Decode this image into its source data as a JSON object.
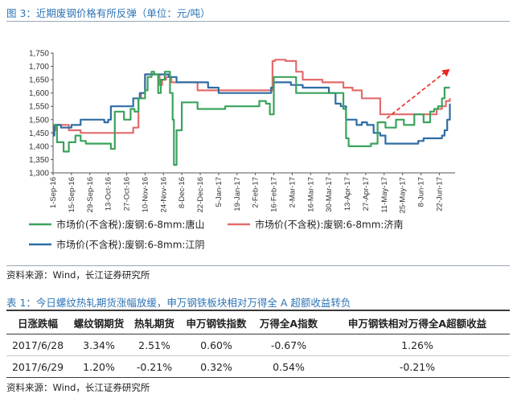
{
  "figure_title": "图 3：近期废钢价格有所反弹（单位：元/吨）",
  "source_note_1": "资料来源：Wind，长江证券研究所",
  "table_title": "表 1：今日螺纹热轧期货涨幅放缓，申万钢铁板块相对万得全 A 超额收益转负",
  "table": {
    "headers": [
      "日涨跌幅",
      "螺纹钢期货",
      "热轧期货",
      "申万钢铁指数",
      "万得全A指数",
      "申万钢铁相对万得全A超额收益"
    ],
    "rows": [
      [
        "2017/6/28",
        "3.34%",
        "2.51%",
        "0.60%",
        "-0.67%",
        "1.26%"
      ],
      [
        "2017/6/29",
        "1.20%",
        "-0.21%",
        "0.32%",
        "0.54%",
        "-0.21%"
      ]
    ]
  },
  "source_note_2": "资料来源：Wind，长江证券研究所",
  "chart_data": {
    "type": "line",
    "ylim": [
      1300,
      1750
    ],
    "yticks": [
      1300,
      1350,
      1400,
      1450,
      1500,
      1550,
      1600,
      1650,
      1700,
      1750
    ],
    "ytick_labels": [
      "1,300",
      "1,350",
      "1,400",
      "1,450",
      "1,500",
      "1,550",
      "1,600",
      "1,650",
      "1,700",
      "1,750"
    ],
    "x_start": "2016-09-01",
    "x_end": "2017-07-04",
    "xtick_labels": [
      "1-Sep-16",
      "15-Sep-16",
      "29-Sep-16",
      "13-Oct-16",
      "27-Oct-16",
      "10-Nov-16",
      "24-Nov-16",
      "8-Dec-16",
      "22-Dec-16",
      "5-Jan-17",
      "19-Jan-17",
      "2-Feb-17",
      "16-Feb-17",
      "2-Mar-17",
      "16-Mar-17",
      "30-Mar-17",
      "13-Apr-17",
      "27-Apr-17",
      "11-May-17",
      "25-May-17",
      "8-Jun-17",
      "22-Jun-17"
    ],
    "xtick_dates": [
      "2016-09-01",
      "2016-09-15",
      "2016-09-29",
      "2016-10-13",
      "2016-10-27",
      "2016-11-10",
      "2016-11-24",
      "2016-12-08",
      "2016-12-22",
      "2017-01-05",
      "2017-01-19",
      "2017-02-02",
      "2017-02-16",
      "2017-03-02",
      "2017-03-16",
      "2017-03-30",
      "2017-04-13",
      "2017-04-27",
      "2017-05-11",
      "2017-05-25",
      "2017-06-08",
      "2017-06-22"
    ],
    "grid": false,
    "legend_position": "bottom",
    "colors": {
      "tangshan": "#3aa35b",
      "jinan": "#e36b6b",
      "jiangyin": "#2e6da4",
      "trend_arrow": "#e8281e"
    },
    "series": [
      {
        "name": "市场价(不含税):废钢:6-8mm:唐山",
        "color": "#3aa35b",
        "x": [
          "2016-09-01",
          "2016-09-03",
          "2016-09-04",
          "2016-09-08",
          "2016-09-09",
          "2016-09-12",
          "2016-09-13",
          "2016-09-15",
          "2016-09-18",
          "2016-09-22",
          "2016-09-26",
          "2016-10-13",
          "2016-10-15",
          "2016-10-18",
          "2016-10-20",
          "2016-10-25",
          "2016-10-27",
          "2016-10-30",
          "2016-11-02",
          "2016-11-05",
          "2016-11-10",
          "2016-11-12",
          "2016-11-15",
          "2016-11-17",
          "2016-11-20",
          "2016-11-22",
          "2016-11-25",
          "2016-11-28",
          "2016-11-29",
          "2016-12-01",
          "2016-12-02",
          "2016-12-04",
          "2016-12-08",
          "2016-12-20",
          "2016-12-28",
          "2017-01-10",
          "2017-01-20",
          "2017-01-30",
          "2017-02-05",
          "2017-02-10",
          "2017-02-13",
          "2017-02-16",
          "2017-02-28",
          "2017-03-05",
          "2017-03-10",
          "2017-03-16",
          "2017-03-25",
          "2017-04-04",
          "2017-04-08",
          "2017-04-10",
          "2017-04-12",
          "2017-04-14",
          "2017-04-25",
          "2017-05-01",
          "2017-05-06",
          "2017-05-12",
          "2017-05-18",
          "2017-05-20",
          "2017-05-24",
          "2017-05-26",
          "2017-05-30",
          "2017-06-03",
          "2017-06-07",
          "2017-06-10",
          "2017-06-13",
          "2017-06-15",
          "2017-06-18",
          "2017-06-21",
          "2017-06-24",
          "2017-06-26",
          "2017-06-28",
          "2017-06-30"
        ],
        "values": [
          1480,
          1475,
          1415,
          1415,
          1380,
          1380,
          1415,
          1415,
          1440,
          1420,
          1410,
          1410,
          1390,
          1530,
          1530,
          1500,
          1500,
          1540,
          1530,
          1580,
          1610,
          1660,
          1680,
          1670,
          1600,
          1650,
          1680,
          1680,
          1600,
          1500,
          1330,
          1460,
          1565,
          1540,
          1540,
          1550,
          1550,
          1550,
          1570,
          1560,
          1520,
          1660,
          1660,
          1600,
          1600,
          1600,
          1600,
          1600,
          1600,
          1540,
          1430,
          1400,
          1400,
          1410,
          1490,
          1470,
          1470,
          1500,
          1500,
          1480,
          1480,
          1520,
          1520,
          1490,
          1490,
          1530,
          1540,
          1550,
          1580,
          1620,
          1620,
          1620
        ]
      },
      {
        "name": "市场价(不含税):废钢:6-8mm:济南",
        "color": "#e36b6b",
        "x": [
          "2016-09-01",
          "2016-09-03",
          "2016-09-10",
          "2016-09-13",
          "2016-09-17",
          "2016-09-22",
          "2016-10-01",
          "2016-10-20",
          "2016-10-27",
          "2016-11-01",
          "2016-11-05",
          "2016-11-07",
          "2016-11-10",
          "2016-11-18",
          "2016-11-21",
          "2016-11-23",
          "2016-11-26",
          "2016-11-30",
          "2016-12-04",
          "2016-12-10",
          "2016-12-20",
          "2017-01-01",
          "2017-01-20",
          "2017-02-10",
          "2017-02-13",
          "2017-02-15",
          "2017-02-17",
          "2017-02-25",
          "2017-03-05",
          "2017-03-10",
          "2017-03-17",
          "2017-03-25",
          "2017-04-05",
          "2017-04-10",
          "2017-04-13",
          "2017-04-17",
          "2017-04-24",
          "2017-05-01",
          "2017-05-08",
          "2017-05-16",
          "2017-05-25",
          "2017-06-01",
          "2017-06-10",
          "2017-06-20",
          "2017-06-24",
          "2017-06-27",
          "2017-06-30"
        ],
        "values": [
          1460,
          1480,
          1480,
          1460,
          1460,
          1450,
          1450,
          1450,
          1450,
          1470,
          1580,
          1600,
          1670,
          1670,
          1630,
          1650,
          1660,
          1640,
          1640,
          1640,
          1610,
          1610,
          1610,
          1610,
          1610,
          1720,
          1725,
          1720,
          1680,
          1650,
          1650,
          1640,
          1640,
          1620,
          1620,
          1610,
          1580,
          1580,
          1520,
          1520,
          1520,
          1520,
          1520,
          1540,
          1550,
          1570,
          1580
        ]
      },
      {
        "name": "市场价(不含税):废钢:6-8mm:江阴",
        "color": "#2e6da4",
        "x": [
          "2016-09-01",
          "2016-09-02",
          "2016-09-04",
          "2016-09-07",
          "2016-09-10",
          "2016-09-15",
          "2016-09-20",
          "2016-09-22",
          "2016-09-25",
          "2016-10-01",
          "2016-10-06",
          "2016-10-10",
          "2016-10-13",
          "2016-10-15",
          "2016-10-18",
          "2016-10-20",
          "2016-10-24",
          "2016-10-27",
          "2016-11-01",
          "2016-11-06",
          "2016-11-10",
          "2016-11-20",
          "2016-11-28",
          "2016-12-01",
          "2016-12-04",
          "2016-12-08",
          "2016-12-20",
          "2016-12-28",
          "2017-01-05",
          "2017-01-15",
          "2017-02-01",
          "2017-02-10",
          "2017-02-14",
          "2017-02-16",
          "2017-03-01",
          "2017-03-10",
          "2017-03-20",
          "2017-03-25",
          "2017-03-30",
          "2017-04-04",
          "2017-04-08",
          "2017-04-12",
          "2017-04-15",
          "2017-04-20",
          "2017-04-24",
          "2017-04-28",
          "2017-05-03",
          "2017-05-08",
          "2017-05-12",
          "2017-05-16",
          "2017-05-20",
          "2017-05-25",
          "2017-06-01",
          "2017-06-06",
          "2017-06-10",
          "2017-06-15",
          "2017-06-20",
          "2017-06-24",
          "2017-06-26",
          "2017-06-28",
          "2017-06-30"
        ],
        "values": [
          1440,
          1480,
          1480,
          1470,
          1470,
          1480,
          1480,
          1500,
          1500,
          1500,
          1500,
          1490,
          1500,
          1550,
          1550,
          1550,
          1550,
          1550,
          1580,
          1600,
          1670,
          1670,
          1660,
          1660,
          1640,
          1640,
          1640,
          1620,
          1600,
          1600,
          1600,
          1600,
          1620,
          1640,
          1630,
          1620,
          1620,
          1620,
          1600,
          1560,
          1550,
          1500,
          1500,
          1480,
          1490,
          1480,
          1450,
          1440,
          1410,
          1410,
          1410,
          1410,
          1410,
          1420,
          1430,
          1430,
          1430,
          1440,
          1460,
          1500,
          1560
        ]
      }
    ],
    "trend_arrow": {
      "from": {
        "x": "2017-05-13",
        "y": 1505
      },
      "to": {
        "x": "2017-06-30",
        "y": 1690
      }
    }
  }
}
